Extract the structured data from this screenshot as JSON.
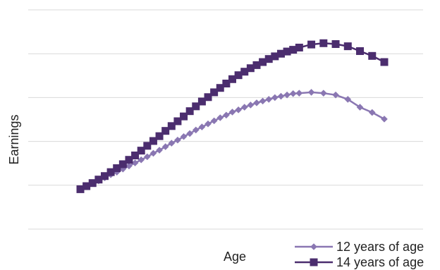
{
  "chart_data": {
    "type": "line",
    "title": "",
    "xlabel": "Age",
    "ylabel": "Earnings",
    "grid": true,
    "y_ticks_labeled": false,
    "x_ticks_labeled": false,
    "legend_position": "bottom-right",
    "ylim": [
      0,
      5
    ],
    "x": [
      16,
      17,
      18,
      19,
      20,
      21,
      22,
      23,
      24,
      25,
      26,
      27,
      28,
      29,
      30,
      31,
      32,
      33,
      34,
      35,
      36,
      37,
      38,
      39,
      40,
      41,
      42,
      43,
      44,
      45,
      46,
      47,
      48,
      49,
      50,
      51,
      52,
      54,
      56,
      58,
      60,
      62,
      64,
      66
    ],
    "series": [
      {
        "name": "12 years of age",
        "color": "#8a77b2",
        "marker": "diamond",
        "values": [
          0.91,
          0.97,
          1.04,
          1.1,
          1.17,
          1.24,
          1.3,
          1.37,
          1.44,
          1.51,
          1.58,
          1.65,
          1.73,
          1.8,
          1.88,
          1.96,
          2.03,
          2.11,
          2.18,
          2.26,
          2.33,
          2.4,
          2.47,
          2.54,
          2.6,
          2.67,
          2.72,
          2.78,
          2.83,
          2.88,
          2.92,
          2.96,
          3.0,
          3.03,
          3.06,
          3.09,
          3.1,
          3.12,
          3.1,
          3.06,
          2.96,
          2.78,
          2.66,
          2.51
        ]
      },
      {
        "name": "14 years of age",
        "color": "#4b2d6e",
        "marker": "square",
        "values": [
          0.91,
          0.98,
          1.05,
          1.13,
          1.21,
          1.3,
          1.39,
          1.48,
          1.58,
          1.68,
          1.79,
          1.9,
          2.01,
          2.12,
          2.24,
          2.35,
          2.46,
          2.57,
          2.69,
          2.8,
          2.91,
          3.01,
          3.12,
          3.22,
          3.32,
          3.42,
          3.51,
          3.59,
          3.67,
          3.74,
          3.81,
          3.88,
          3.94,
          4.0,
          4.05,
          4.09,
          4.14,
          4.21,
          4.24,
          4.22,
          4.17,
          4.06,
          3.95,
          3.81
        ]
      }
    ]
  }
}
